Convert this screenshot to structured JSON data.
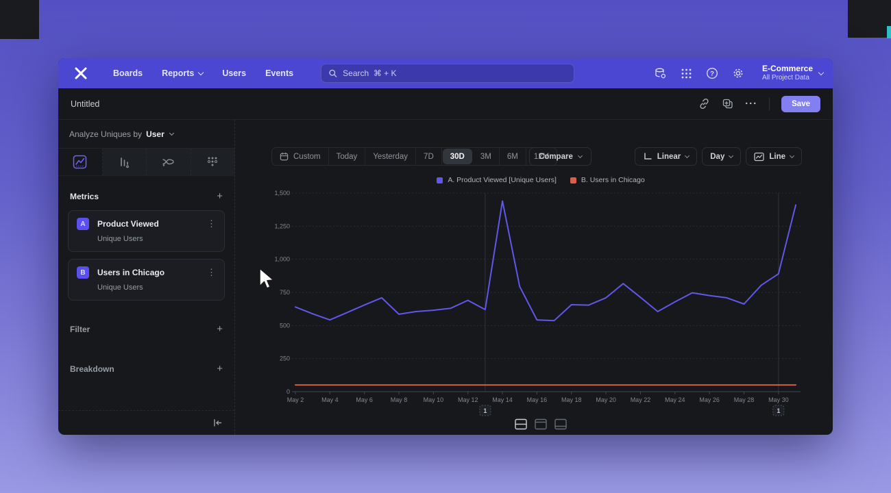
{
  "icons": {
    "plus": "+",
    "kebab": "⋮",
    "ellipsis": "···"
  },
  "navbar": {
    "items": [
      {
        "label": "Boards",
        "chevron": false
      },
      {
        "label": "Reports",
        "chevron": true
      },
      {
        "label": "Users",
        "chevron": false
      },
      {
        "label": "Events",
        "chevron": false
      }
    ],
    "search_placeholder": "Search  ⌘ + K",
    "project_name": "E-Commerce",
    "project_subtitle": "All Project Data"
  },
  "toolbar": {
    "title": "Untitled",
    "save_label": "Save"
  },
  "sidebar": {
    "analyze_prefix": "Analyze Uniques by",
    "analyze_value": "User",
    "metrics_label": "Metrics",
    "filter_label": "Filter",
    "breakdown_label": "Breakdown",
    "metrics": [
      {
        "badge": "A",
        "name": "Product Viewed",
        "subtitle": "Unique Users"
      },
      {
        "badge": "B",
        "name": "Users in Chicago",
        "subtitle": "Unique Users"
      }
    ]
  },
  "controls": {
    "date_ranges": [
      "Custom",
      "Today",
      "Yesterday",
      "7D",
      "30D",
      "3M",
      "6M",
      "12M"
    ],
    "selected_range": "30D",
    "compare_label": "Compare",
    "scale_label": "Linear",
    "interval_label": "Day",
    "chart_type_label": "Line"
  },
  "chart_data": {
    "type": "line",
    "title": "",
    "x": [
      "May 2",
      "May 3",
      "May 4",
      "May 5",
      "May 6",
      "May 7",
      "May 8",
      "May 9",
      "May 10",
      "May 11",
      "May 12",
      "May 13",
      "May 14",
      "May 15",
      "May 16",
      "May 17",
      "May 18",
      "May 19",
      "May 20",
      "May 21",
      "May 22",
      "May 23",
      "May 24",
      "May 25",
      "May 26",
      "May 27",
      "May 28",
      "May 29",
      "May 30",
      "May 31"
    ],
    "x_label_every": 2,
    "ylim": [
      0,
      1500
    ],
    "yticks": [
      0,
      250,
      500,
      750,
      1000,
      1250,
      1500
    ],
    "grid": "horizontal-dashed",
    "legend_position": "top",
    "series": [
      {
        "name": "A. Product Viewed [Unique Users]",
        "color": "#6157e9",
        "values": [
          640,
          588,
          542,
          598,
          655,
          709,
          585,
          605,
          615,
          630,
          690,
          620,
          1440,
          795,
          542,
          537,
          657,
          654,
          709,
          816,
          713,
          605,
          678,
          747,
          726,
          709,
          662,
          804,
          890,
          1410
        ]
      },
      {
        "name": "B. Users in Chicago",
        "color": "#d95f4a",
        "values": [
          50,
          50,
          50,
          50,
          50,
          50,
          50,
          50,
          50,
          50,
          50,
          50,
          50,
          50,
          50,
          50,
          50,
          50,
          50,
          50,
          50,
          50,
          50,
          50,
          50,
          50,
          50,
          50,
          50,
          50
        ]
      }
    ],
    "annotations": [
      {
        "label": "1",
        "x_index": 11
      },
      {
        "label": "1",
        "x_index": 28
      }
    ]
  }
}
